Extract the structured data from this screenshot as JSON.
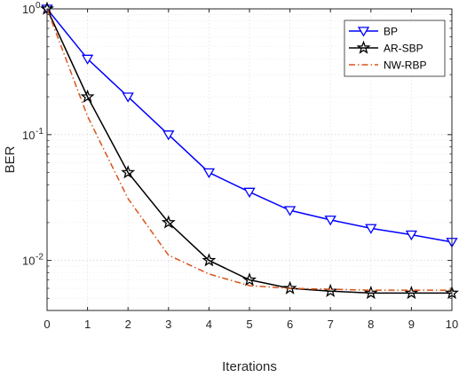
{
  "chart_data": {
    "type": "line",
    "xlabel": "Iterations",
    "ylabel": "BER",
    "xlim": [
      0,
      10
    ],
    "ylim": [
      0.004,
      1
    ],
    "yscale": "log",
    "grid": true,
    "legend_position": "top-right",
    "x_ticks": [
      0,
      1,
      2,
      3,
      4,
      5,
      6,
      7,
      8,
      9,
      10
    ],
    "y_ticks": [
      {
        "value": 1,
        "base": "10",
        "exp": "0"
      },
      {
        "value": 0.1,
        "base": "10",
        "exp": "-1"
      },
      {
        "value": 0.01,
        "base": "10",
        "exp": "-2"
      }
    ],
    "series": [
      {
        "name": "BP",
        "color": "#0000ff",
        "line_style": "solid",
        "marker": "triangle-down",
        "x": [
          0,
          1,
          2,
          3,
          4,
          5,
          6,
          7,
          8,
          9,
          10
        ],
        "y": [
          1,
          0.4,
          0.2,
          0.1,
          0.05,
          0.035,
          0.025,
          0.021,
          0.018,
          0.016,
          0.014
        ]
      },
      {
        "name": "AR-SBP",
        "color": "#000000",
        "line_style": "solid",
        "marker": "star",
        "x": [
          0,
          1,
          2,
          3,
          4,
          5,
          6,
          7,
          8,
          9,
          10
        ],
        "y": [
          1,
          0.2,
          0.05,
          0.02,
          0.01,
          0.007,
          0.006,
          0.0057,
          0.0055,
          0.0055,
          0.0055
        ]
      },
      {
        "name": "NW-RBP",
        "color": "#d95319",
        "line_style": "dashdot",
        "marker": "none",
        "x": [
          0,
          1,
          2,
          3,
          4,
          5,
          6,
          7,
          8,
          9,
          10
        ],
        "y": [
          1,
          0.14,
          0.031,
          0.011,
          0.0078,
          0.0063,
          0.006,
          0.0059,
          0.0058,
          0.0058,
          0.0058
        ]
      }
    ]
  }
}
